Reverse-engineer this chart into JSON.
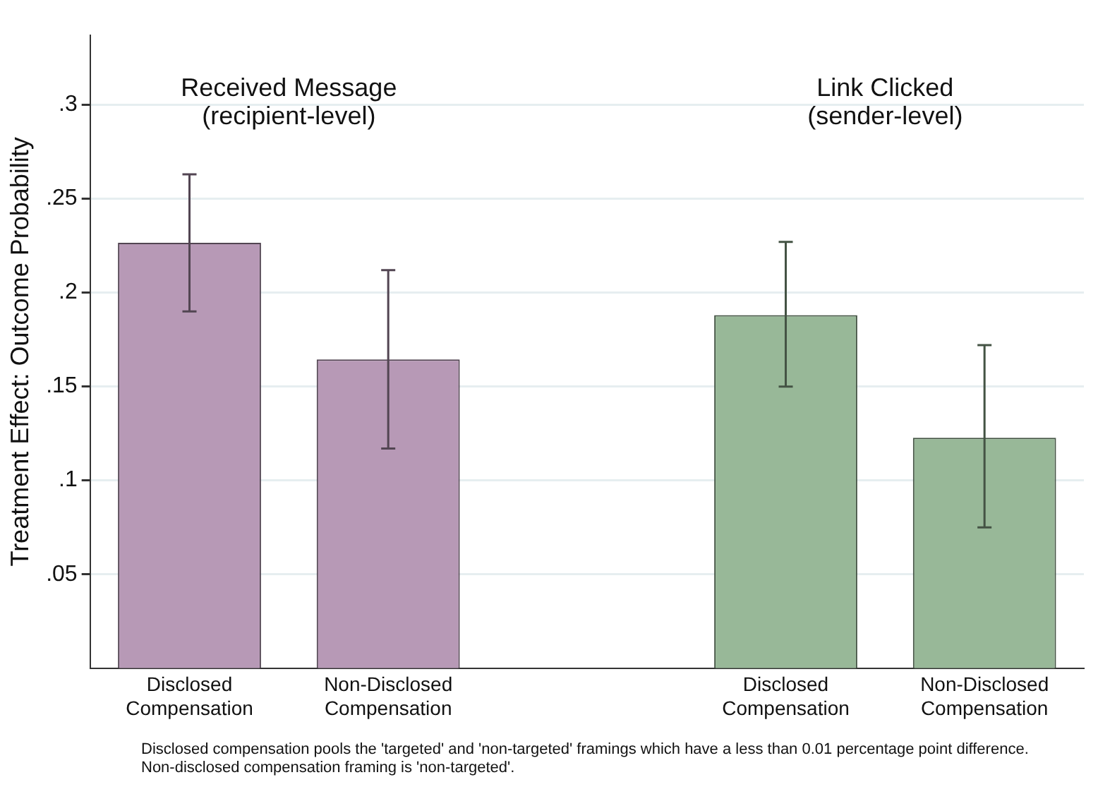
{
  "chart_data": {
    "type": "bar",
    "ylabel": "Treatment Effect: Outcome Probability",
    "categories": [
      "Disclosed Compensation",
      "Non-Disclosed Compensation",
      null,
      "Disclosed Compensation",
      "Non-Disclosed Compensation"
    ],
    "series": [
      {
        "color": "#b799b6",
        "values": [
          0.2265,
          0.1644,
          null,
          null,
          null
        ],
        "errors": [
          [
            0.19,
            0.263
          ],
          [
            0.117,
            0.212
          ],
          null,
          null,
          null
        ]
      },
      {
        "color": "#98b898",
        "values": [
          null,
          null,
          null,
          0.188,
          0.1227
        ],
        "errors": [
          null,
          null,
          null,
          [
            0.15,
            0.227
          ],
          [
            0.075,
            0.172
          ]
        ]
      }
    ],
    "ylim": [
      0,
      0.337
    ],
    "yticks": [
      {
        "value": 0.05,
        "label": ".05"
      },
      {
        "value": 0.1,
        "label": ".1"
      },
      {
        "value": 0.15,
        "label": ".15"
      },
      {
        "value": 0.2,
        "label": ".2"
      },
      {
        "value": 0.25,
        "label": ".25"
      },
      {
        "value": 0.3,
        "label": ".3"
      }
    ],
    "grid": "y",
    "legend": false,
    "annotations": [
      "Received Message\n(recipient-level)",
      "Link Clicked\n(sender-level)",
      "Disclosed compensation pools the 'targeted' and 'non-targeted' framings which have a less than 0.01 percentage point difference.",
      "Non-disclosed compensation framing is 'non-targeted'."
    ]
  }
}
